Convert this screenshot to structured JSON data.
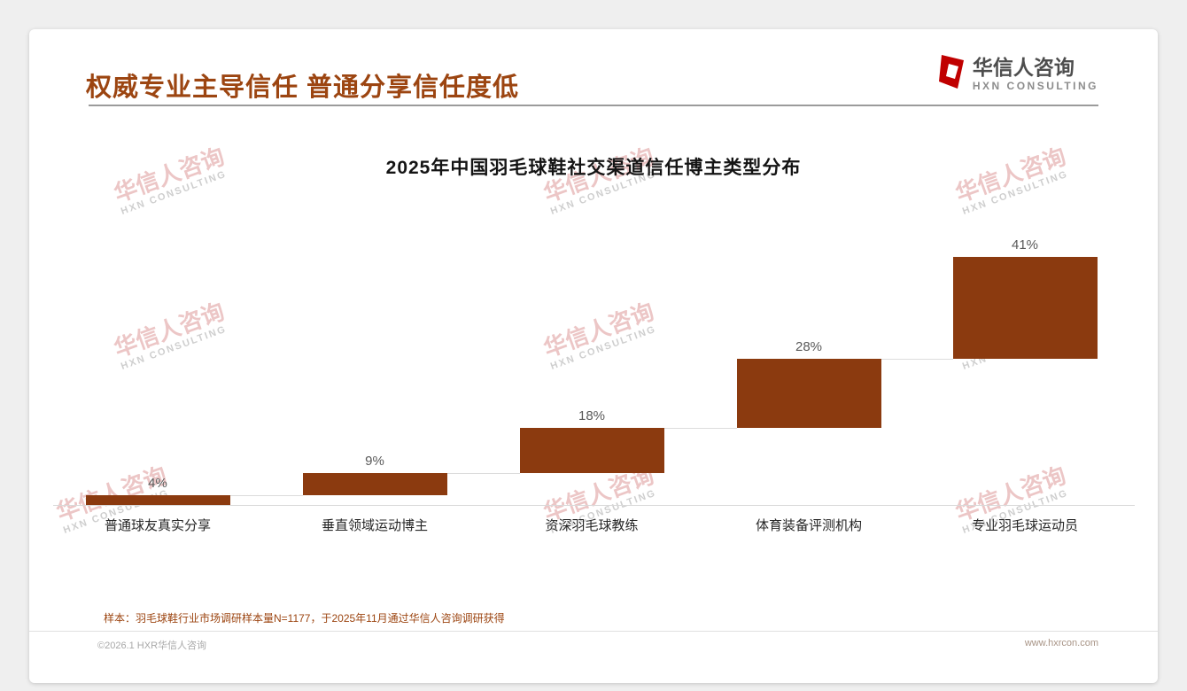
{
  "page": {
    "header": {
      "title": "权威专业主导信任 普通分享信任度低"
    },
    "logo": {
      "name": "华信人咨询",
      "subtitle": "HXN CONSULTING"
    },
    "watermark": {
      "line1": "华信人咨询",
      "line2": "HXN CONSULTING"
    },
    "footnote": "样本：羽毛球鞋行业市场调研样本量N=1177，于2025年11月通过华信人咨询调研获得",
    "footer": {
      "left": "©2026.1 HXR华信人咨询",
      "right": "www.hxrcon.com"
    }
  },
  "chart_data": {
    "type": "bar",
    "variant": "waterfall-steps",
    "title": "2025年中国羽毛球鞋社交渠道信任博主类型分布",
    "categories": [
      "普通球友真实分享",
      "垂直领域运动博主",
      "资深羽毛球教练",
      "体育装备评测机构",
      "专业羽毛球运动员"
    ],
    "values": [
      4,
      9,
      18,
      28,
      41
    ],
    "labels": [
      "4%",
      "9%",
      "18%",
      "28%",
      "41%"
    ],
    "cumulative_starts": [
      0,
      4,
      13,
      31,
      59
    ],
    "bar_color": "#8B3A0F",
    "ylim": [
      0,
      100
    ],
    "gridlines": false,
    "legend": false
  }
}
